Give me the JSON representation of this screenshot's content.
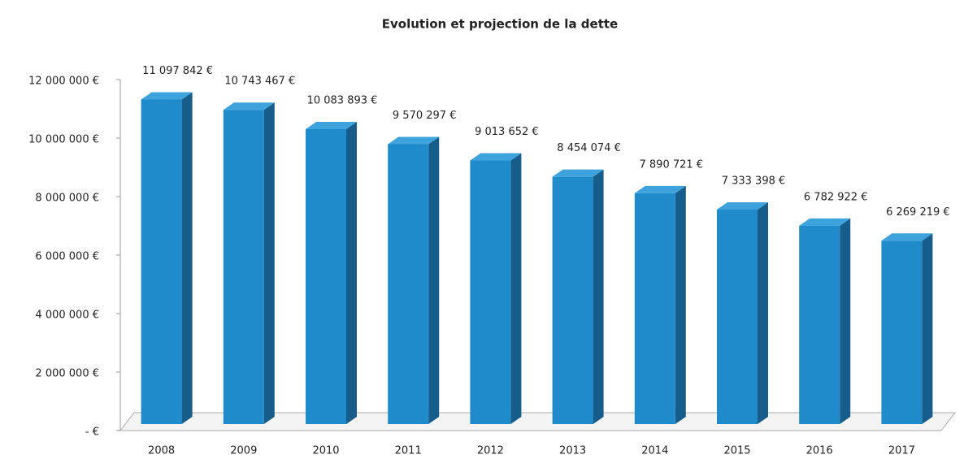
{
  "chart_data": {
    "type": "bar3d",
    "title": "Evolution et projection de la dette",
    "categories": [
      "2008",
      "2009",
      "2010",
      "2011",
      "2012",
      "2013",
      "2014",
      "2015",
      "2016",
      "2017"
    ],
    "values": [
      11097842,
      10743467,
      10083893,
      9570297,
      9013652,
      8454074,
      7890721,
      7333398,
      6782922,
      6269219
    ],
    "value_labels": [
      "11 097 842 €",
      "10 743 467 €",
      "10 083 893 €",
      "9 570 297 €",
      "9 013 652 €",
      "8 454 074 €",
      "7 890 721 €",
      "7 333 398 €",
      "6 782 922 €",
      "6 269 219 €"
    ],
    "color": "#1f8bcb",
    "ylim": [
      0,
      12000000
    ],
    "yticks": [
      {
        "value": 0,
        "label": "- €"
      },
      {
        "value": 2000000,
        "label": "2 000 000 €"
      },
      {
        "value": 4000000,
        "label": "4 000 000 €"
      },
      {
        "value": 6000000,
        "label": "6 000 000 €"
      },
      {
        "value": 8000000,
        "label": "8 000 000 €"
      },
      {
        "value": 10000000,
        "label": "10 000 000 €"
      },
      {
        "value": 12000000,
        "label": "12 000 000 €"
      }
    ]
  }
}
